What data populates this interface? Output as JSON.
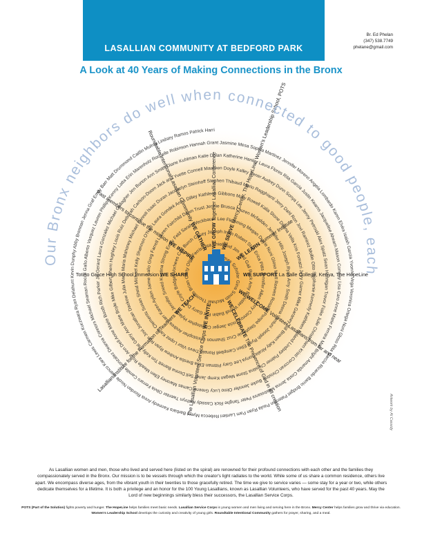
{
  "header": {
    "title": "LASALLIAN COMMUNITY AT BEDFORD PARK",
    "accent_color": "#0e8fc4"
  },
  "contact": {
    "name": "Br. Ed Phelan",
    "phone": "(347) 538.7749",
    "email": "phelane@gmail.com"
  },
  "subtitle": "A Look at 40 Years of Making Connections in the Bronx",
  "outer_quote": "Our Bronx neighbors do well when connected to good people, each other and life-giving resources.",
  "credit": "Artwork by Al Cassidy",
  "spiral_names": "Thomas Scholar  Gina Smith  Michael Thomas  Brian Carty  Olga Ferris  Lisa Thiebaud  Jim and Gail Ruck  Amy Banister  Wendi Babin  Pat Garry  Dan Coyle  Bridget Vorhees  Carl Burch  Casey  Joseph Irwin  Robert Stan  Erica Pitts  Jennifer Allen  Kerry Conroy  Tricia Jaeger  Christopher Hyland  Jennifer Sneed  Kristina Strong  Emily Feld  Sarah Weckbauer  Lee Flemming  Megan Durrie  Nuni Gloso  Matt Reeves  Rosalie Pompa  Stephanie Cruz  Shannon Christopher  Andrea Carr  Karen Ayilon  Jaime Gallo  Greg Farrell  Lauren Fairchild  Dawn Trust  Jennie Brusca  Lauren Mcfadden  Jennifer Hills  Joseph Ryan  Amy Smith  Deena Vantuni  Joseph Ryan  Ellen Campbell  Ronald Trevo  Vitor Lopez  Katie Clements  Susan Sheid  Michael Kelly  Shannon O'Neill  Laura Gondek  Anna Dilley  Kathleen Gibbons  Mary Rowell  Kalia Stone  Donna Vella  Kris Fomatzi  Jerry Garner  Mike Garaney  Bill Brown  Katy Alcala  Sonya Lee  Gary Pittman  Elisa Bresba  Andrew Ryan  Ron Jovi  Jonathan Dackow  Julia Mach  Maria Mahoney  Michael Faresti  Isaac Duran  Jacquelyn Steinhoff  Stephen Thibaud  Mario Ragghianti  Jerry Dahl  Ron Jovi Ramirez  Mollie Otto  Stephanie Kennedy  Kathleen Boland  Lindsey Palmer  Christina Stone  Megan Kemp  Janet Sell  Donna Barrett  Tim Kelly  Pat Garry  Ann Marie Boyle  Mike Gilbert  Sherri Hughley  Louis Ruiz  Deborah Carlson-Doom  Jack and Yvette Connell  Maureen Doyle  Kelley Zener  Audrey Dunn  Sonya Lee  Jenny Petroski  Alex Spatz  Sean Hannigan  Trevor Fiske  Julie Christensen  Kristi Corcoran  Christine Burke  Jennifer Olmo  Lucy Greene  Camas Maroney  Ellen Meade  Rose Ann Dell  Anne Marie Booth  Rich Parker  Jill Gerard  Laura Gonzalez  Michael Gallagher  Jen Burton  Ann Smith  Diane Kuhlman  Katie Dolan  Katherine Hanley  Laura Flores  Rita Garcia  Justin Kearns  Jacqueline Ahearn  Mason Conway  Lisa Caro  Anne Marie Ferrara  Matt Bright  Amanda Costa  Jenna Mastroianni  Peter Tanghe  Rick Cassidy  Kathryn Twenter  Olivia Ferraro  Camille Gonzalez  Deanna Connors  Michael Seaman  Rocco Gallo  Alberto Vasquez  Lauren Phillips  Kenny Latta  Erin Marenholz  Rochelle Robinson  Hannah Grant  Jasmine Mesa  Sophia Martinez  Jennifer Moreno  Angela Lombardo  Karen Elvira  Isaiah Garcia  Yvonne Vega  Veronica Ortega  Nuni Gloso  Rita Garcia  Ricardo Barrio  Bridget Paterson  Paula Ryan  Pam Lantieri  Rebecca Myers  Barbara Kennedy  Anna Riordan  Nicole Bianco  Kara Lewis  Carmen Kuczwara  Ryan Delahunt  Kevin Dunphy  Abby Brennan  Jenna Graf  Emily Barr  Matt Drummond  Caitlin Mulroy  Lindsey Ramos  Patrick Harris  Jackie Henning  Lauren Moll  Eleanor Baranski  Lauren Carrasquillo  Kevin Hill  Katie McMahon  Ann Simpson  Maryellen Schmitt  Kate Casey  Peter Sullivan  Danielle Ling  Anne Hurley  Terry Buckley  Jenny Caldwell  Alex Ruiz  Dean Shelley  Alicia Beynon  Sarah Reyes  Mark Ambrose  Emily Wade  Melissa Fernandez  Holly Smith  Frank Brady  Jake Marino  Jamie Jon  Eileen Sweeney  John McManus  Richard Soliz  Karen McClelland  Kathleen Wolf  Amy Trachtenberg  Lindsey Ferguson  Mayra Lopez  Deena Lynch  Claire Pinto  Courtney Kirk  Matthew Ryan  Jim Robinson  Lisa Kilpatrick  Anna Bevilacqua  Brittany Dowd  Alexis Bertram",
  "spiral_phrases": [
    "WE GATHER  Roundtable Intentional Lasallian Community",
    "WE INSPIRE  Past members to continue the mission",
    "WE SHARE  Totino Grace High School Immersion",
    "WE TEACH  Lasallian Institute for the Formation of Teachers",
    "WE INVITE  The Lasallian Volunteer Service Corps",
    "WE CELEBRATE  The Presence of God in all creation",
    "WE WELCOME  Volunteer Lasallians from far and near",
    "WE SUPPORT  La Salle College, Kenya, The HopeLine",
    "WE LEARN  Summer Institute",
    "WE SERVE  Mercy Center, The HopeLine, Women's Leadership School, POTS",
    "WE GROW  Together Lasallian Conference"
  ],
  "footer_paragraph": "As Lasallian women and men, those who lived and served here (listed on the spiral) are renowned for their profound connections with each other and the families they compassionately served in the Bronx. Our mission is to be vessels through which the creator's light radiates to the world. While some of us share a common residence, others live apart. We encompass diverse ages, from the vibrant youth in their twenties to those gracefully retired. The time we give to service varies — some stay for a year or two, while others dedicate themselves for a lifetime. It is both a privilege and an honor for the 100 Young Lasallians, known as Lasallian Volunteers, who have served for the past 40 years. May the Lord of new beginnings similarly bless their successors, the Lasallian Service Corps.",
  "footer_notes": [
    {
      "term": "POTS (Part of the Solution)",
      "text": " fights poverty and hunger. "
    },
    {
      "term": "The HopeLine",
      "text": " helps families meet basic needs. "
    },
    {
      "term": "Lasallian Service Corps",
      "text": " is young women and men living and serving here in the Bronx. "
    },
    {
      "term": "Mercy Center",
      "text": " helps families grow and thrive via education. "
    },
    {
      "term": "Women's Leadership School",
      "text": " develops the curiosity and creativity of young girls. "
    },
    {
      "term": "Roundtable Intentional Community",
      "text": " gathers for prayer, sharing, and a meal."
    }
  ]
}
